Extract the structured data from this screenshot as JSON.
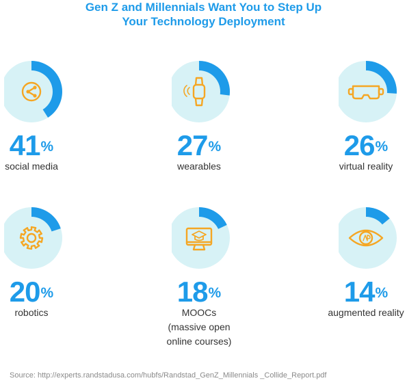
{
  "title": {
    "line1": "Gen Z and Millennials Want You to Step Up",
    "line2": "Your Technology Deployment"
  },
  "colors": {
    "accent": "#1e9be9",
    "donut_base": "#d7f2f6",
    "icon": "#f5a623",
    "label_text": "#333333",
    "source_text": "#8a8a8a"
  },
  "chart_data": {
    "type": "pie",
    "title": "Gen Z and Millennials Want You to Step Up Your Technology Deployment",
    "items": [
      {
        "label": "social media",
        "value": 41,
        "icon": "share-icon"
      },
      {
        "label": "wearables",
        "value": 27,
        "icon": "smartwatch-icon"
      },
      {
        "label": "virtual reality",
        "value": 26,
        "icon": "vr-headset-icon"
      },
      {
        "label": "robotics",
        "value": 20,
        "icon": "gear-icon"
      },
      {
        "label": "MOOCs\n(massive open\nonline courses)",
        "value": 18,
        "icon": "graduation-cap-monitor-icon"
      },
      {
        "label": "augmented reality",
        "value": 14,
        "icon": "eye-icon"
      }
    ],
    "unit": "%"
  },
  "source": "Source: http://experts.randstadusa.com/hubfs/Randstad_GenZ_Millennials _Collide_Report.pdf"
}
